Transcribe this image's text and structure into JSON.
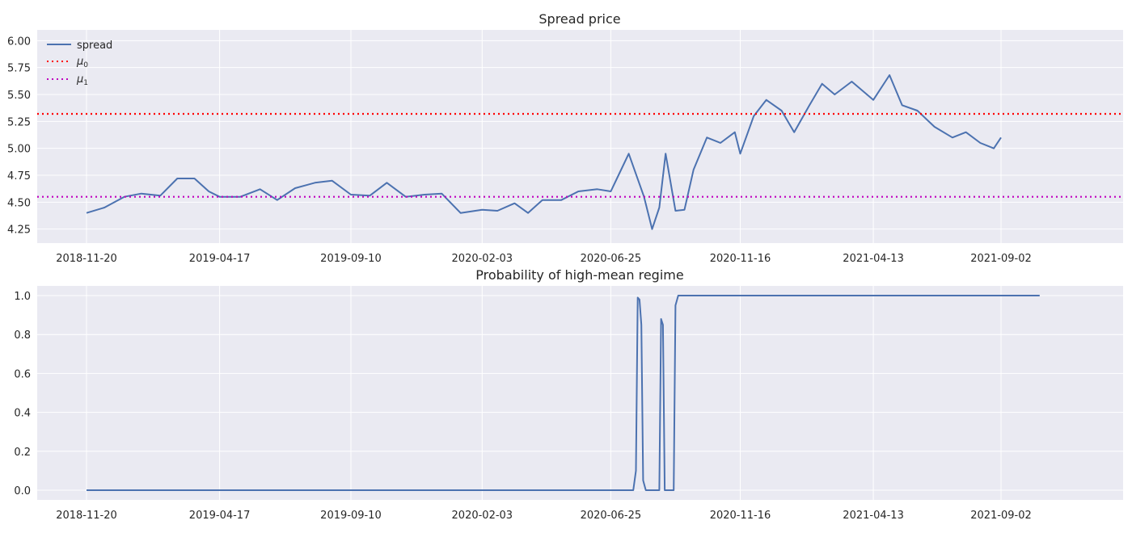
{
  "chart_data": [
    {
      "type": "line",
      "title": "Spread price",
      "xlabel": "",
      "ylabel": "",
      "ylim": [
        4.12,
        6.1
      ],
      "yticks": [
        "4.25",
        "4.50",
        "4.75",
        "5.00",
        "5.25",
        "5.50",
        "5.75",
        "6.00"
      ],
      "xticks": [
        "2018-11-20",
        "2019-04-17",
        "2019-09-10",
        "2020-02-03",
        "2020-06-25",
        "2020-11-16",
        "2021-04-13",
        "2021-09-02"
      ],
      "grid": true,
      "legend_position": "top-left",
      "series": [
        {
          "name": "spread",
          "color": "#4c72b0",
          "style": "solid",
          "points": [
            [
              "2018-11-20",
              4.4
            ],
            [
              "2018-12-10",
              4.45
            ],
            [
              "2019-01-01",
              4.55
            ],
            [
              "2019-01-20",
              4.58
            ],
            [
              "2019-02-10",
              4.56
            ],
            [
              "2019-03-01",
              4.72
            ],
            [
              "2019-03-20",
              4.72
            ],
            [
              "2019-04-05",
              4.6
            ],
            [
              "2019-04-17",
              4.55
            ],
            [
              "2019-05-10",
              4.55
            ],
            [
              "2019-06-01",
              4.62
            ],
            [
              "2019-06-20",
              4.52
            ],
            [
              "2019-07-10",
              4.63
            ],
            [
              "2019-08-01",
              4.68
            ],
            [
              "2019-08-20",
              4.7
            ],
            [
              "2019-09-10",
              4.57
            ],
            [
              "2019-10-01",
              4.56
            ],
            [
              "2019-10-20",
              4.68
            ],
            [
              "2019-11-10",
              4.55
            ],
            [
              "2019-12-01",
              4.57
            ],
            [
              "2019-12-20",
              4.58
            ],
            [
              "2020-01-10",
              4.4
            ],
            [
              "2020-02-03",
              4.43
            ],
            [
              "2020-02-20",
              4.42
            ],
            [
              "2020-03-10",
              4.49
            ],
            [
              "2020-03-25",
              4.4
            ],
            [
              "2020-04-10",
              4.52
            ],
            [
              "2020-05-01",
              4.52
            ],
            [
              "2020-05-20",
              4.6
            ],
            [
              "2020-06-10",
              4.62
            ],
            [
              "2020-06-25",
              4.6
            ],
            [
              "2020-07-15",
              4.95
            ],
            [
              "2020-08-01",
              4.55
            ],
            [
              "2020-08-10",
              4.25
            ],
            [
              "2020-08-18",
              4.45
            ],
            [
              "2020-08-25",
              4.95
            ],
            [
              "2020-09-05",
              4.42
            ],
            [
              "2020-09-15",
              4.43
            ],
            [
              "2020-09-25",
              4.8
            ],
            [
              "2020-10-10",
              5.1
            ],
            [
              "2020-10-25",
              5.05
            ],
            [
              "2020-11-10",
              5.15
            ],
            [
              "2020-11-16",
              4.95
            ],
            [
              "2020-12-01",
              5.3
            ],
            [
              "2020-12-15",
              5.45
            ],
            [
              "2021-01-01",
              5.35
            ],
            [
              "2021-01-15",
              5.15
            ],
            [
              "2021-02-01",
              5.4
            ],
            [
              "2021-02-15",
              5.6
            ],
            [
              "2021-03-01",
              5.5
            ],
            [
              "2021-03-20",
              5.62
            ],
            [
              "2021-04-13",
              5.45
            ],
            [
              "2021-05-01",
              5.68
            ],
            [
              "2021-05-15",
              5.4
            ],
            [
              "2021-06-01",
              5.35
            ],
            [
              "2021-06-20",
              5.2
            ],
            [
              "2021-07-10",
              5.1
            ],
            [
              "2021-07-25",
              5.15
            ],
            [
              "2021-08-10",
              5.05
            ],
            [
              "2021-08-25",
              5.0
            ],
            [
              "2021-09-02",
              5.1
            ]
          ]
        },
        {
          "name": "μ0",
          "color": "#ff0000",
          "style": "dotted",
          "values": [
            5.32
          ]
        },
        {
          "name": "μ1",
          "color": "#bf00bf",
          "style": "dotted",
          "values": [
            4.55
          ]
        }
      ]
    },
    {
      "type": "line",
      "title": "Probability of high-mean regime",
      "xlabel": "",
      "ylabel": "",
      "ylim": [
        -0.05,
        1.05
      ],
      "yticks": [
        "0.0",
        "0.2",
        "0.4",
        "0.6",
        "0.8",
        "1.0"
      ],
      "xticks": [
        "2018-11-20",
        "2019-04-17",
        "2019-09-10",
        "2020-02-03",
        "2020-06-25",
        "2020-11-16",
        "2021-04-13",
        "2021-09-02"
      ],
      "grid": true,
      "series": [
        {
          "color": "#4c72b0",
          "points": [
            [
              "2018-11-20",
              0.0
            ],
            [
              "2020-07-20",
              0.0
            ],
            [
              "2020-07-23",
              0.1
            ],
            [
              "2020-07-25",
              0.99
            ],
            [
              "2020-07-27",
              0.98
            ],
            [
              "2020-07-29",
              0.85
            ],
            [
              "2020-07-31",
              0.05
            ],
            [
              "2020-08-03",
              0.0
            ],
            [
              "2020-08-18",
              0.0
            ],
            [
              "2020-08-20",
              0.88
            ],
            [
              "2020-08-22",
              0.85
            ],
            [
              "2020-08-24",
              0.0
            ],
            [
              "2020-09-03",
              0.0
            ],
            [
              "2020-09-05",
              0.95
            ],
            [
              "2020-09-08",
              1.0
            ],
            [
              "2021-10-15",
              1.0
            ]
          ]
        }
      ]
    }
  ]
}
